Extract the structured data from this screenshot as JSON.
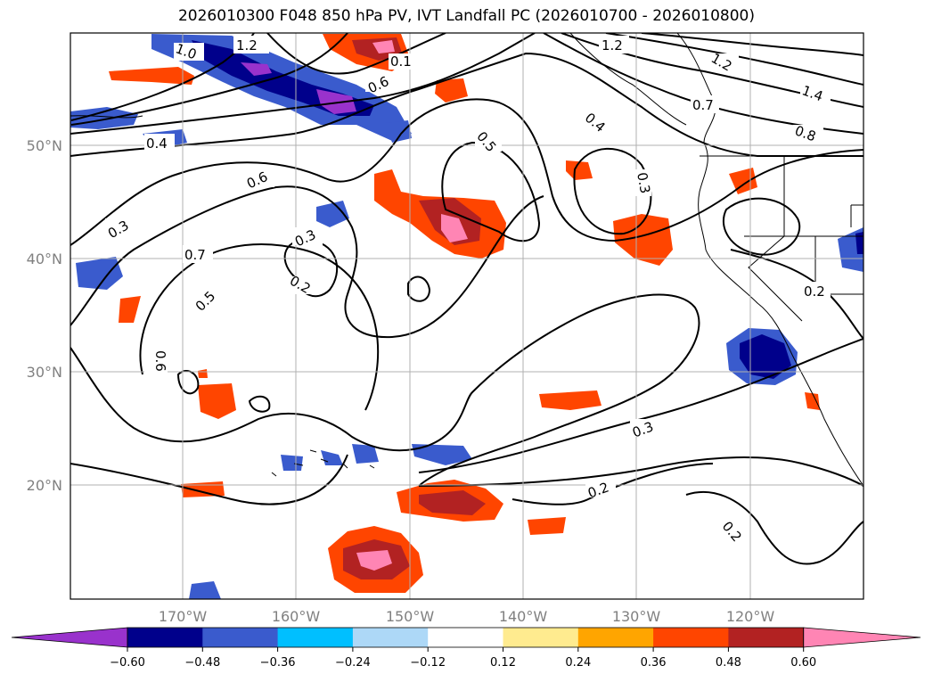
{
  "title": "2026010300 F048 850 hPa PV, IVT Landfall PC (2026010700 - 2026010800)",
  "map": {
    "lat_labels": [
      "50°N",
      "40°N",
      "30°N",
      "20°N"
    ],
    "lon_labels": [
      "170°W",
      "160°W",
      "150°W",
      "140°W",
      "130°W",
      "120°W"
    ],
    "lat_values": [
      50,
      40,
      30,
      20
    ],
    "lon_values": [
      -170,
      -160,
      -150,
      -140,
      -130,
      -120
    ],
    "extent": {
      "lon_min": -180,
      "lon_max": -110,
      "lat_min": 10,
      "lat_max": 60
    },
    "grid": true,
    "contour_labels": [
      "1.2",
      "1.2",
      "1.2",
      "0.1",
      "0.6",
      "0.7",
      "1.4",
      "0.8",
      "0.4",
      "0.5",
      "0.4",
      "0.6",
      "0.3",
      "0.3",
      "0.7",
      "0.3",
      "0.2",
      "0.5",
      "0.6",
      "0.3",
      "0.2",
      "0.2",
      "0.2",
      "1.0"
    ]
  },
  "colorbar": {
    "ticks": [
      "−0.60",
      "−0.48",
      "−0.36",
      "−0.24",
      "−0.12",
      "0.12",
      "0.24",
      "0.36",
      "0.48",
      "0.60"
    ],
    "colors": [
      "#9932cc",
      "#00008b",
      "#3a5bcd",
      "#00bfff",
      "#add8f7",
      "#ffffff",
      "#ffeb8f",
      "#ffa500",
      "#ff4500",
      "#b22222",
      "#ff85b4"
    ],
    "extend": "both"
  }
}
